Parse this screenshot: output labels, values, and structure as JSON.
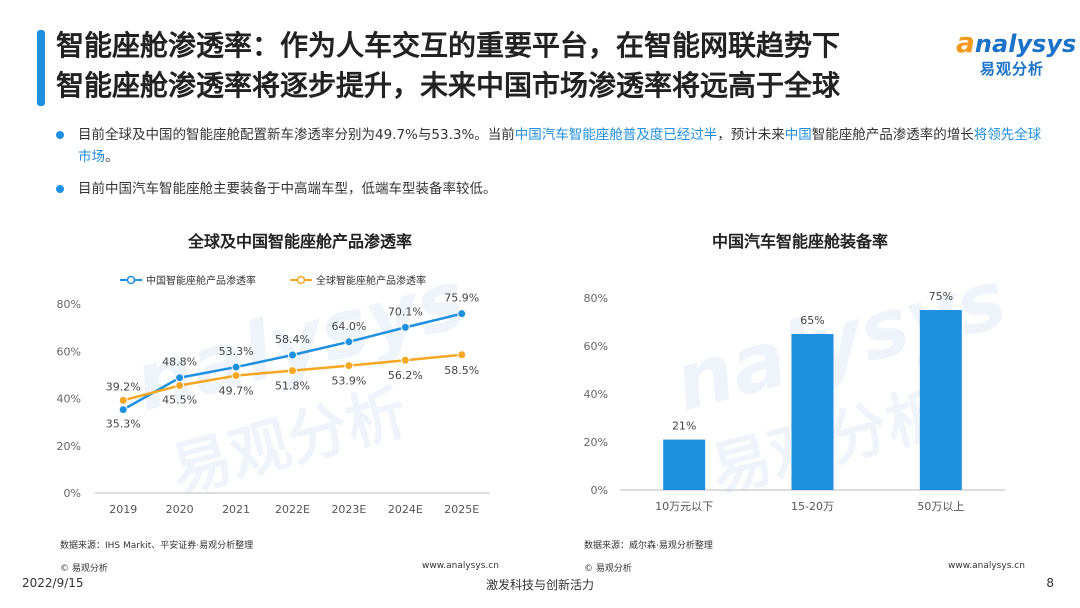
{
  "header": {
    "title_line1": "智能座舱渗透率：作为人车交互的重要平台，在智能网联趋势下",
    "title_line2": "智能座舱渗透率将逐步提升，未来中国市场渗透率将远高于全球",
    "logo_en_a": "a",
    "logo_en_rest": "nalysys",
    "logo_cn": "易观分析"
  },
  "bullets": {
    "b1_p1": "目前全球及中国的智能座舱配置新车渗透率分别为49.7%与53.3%。当前",
    "b1_h1": "中国汽车智能座舱普及度已经过半",
    "b1_p2": "，预计未来",
    "b1_h2": "中国",
    "b1_p3": "智能座舱产品渗透率的增长",
    "b1_h3": "将领先全球市场",
    "b1_p4": "。",
    "b2": "目前中国汽车智能座舱主要装备于中高端车型，低端车型装备率较低。"
  },
  "colors": {
    "blue": "#1f8fe0",
    "orange": "#f5a623",
    "bar": "#1f8fe0"
  },
  "chart_data": [
    {
      "type": "line",
      "title": "全球及中国智能座舱产品渗透率",
      "categories": [
        "2019",
        "2020",
        "2021",
        "2022E",
        "2023E",
        "2024E",
        "2025E"
      ],
      "series": [
        {
          "name": "中国智能座舱产品渗透率",
          "values": [
            35.3,
            48.8,
            53.3,
            58.4,
            64.0,
            70.1,
            75.9
          ]
        },
        {
          "name": "全球智能座舱产品渗透率",
          "values": [
            39.2,
            45.5,
            49.7,
            51.8,
            53.9,
            56.2,
            58.5
          ]
        }
      ],
      "yticks": [
        "0%",
        "20%",
        "40%",
        "60%",
        "80%"
      ],
      "ylim": [
        0,
        80
      ],
      "legend": "top",
      "source": "数据来源：IHS Markit、平安证券·易观分析整理"
    },
    {
      "type": "bar",
      "title": "中国汽车智能座舱装备率",
      "categories": [
        "10万元以下",
        "15-20万",
        "50万以上"
      ],
      "values": [
        21,
        65,
        75
      ],
      "labels": [
        "21%",
        "65%",
        "75%"
      ],
      "yticks": [
        "0%",
        "20%",
        "40%",
        "60%",
        "80%"
      ],
      "ylim": [
        0,
        80
      ],
      "source": "数据来源：威尔森·易观分析整理"
    }
  ],
  "footer": {
    "copyright": "© 易观分析",
    "url": "www.analysys.cn",
    "date": "2022/9/15",
    "slogan": "激发科技与创新活力",
    "page": "8"
  }
}
